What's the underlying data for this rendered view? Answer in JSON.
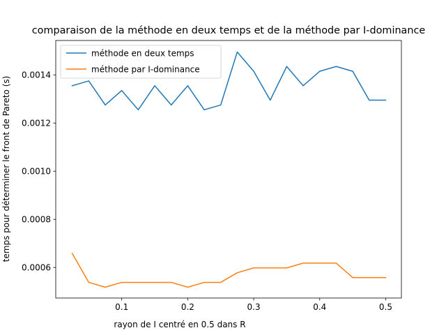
{
  "chart_data": {
    "type": "line",
    "title": "comparaison de la méthode en deux temps et de la méthode par I-dominance",
    "xlabel": "rayon de I centré en 0.5 dans R",
    "ylabel": "temps pour déterminer le front de Pareto (s)",
    "xlim": [
      0.0,
      0.5238
    ],
    "ylim": [
      0.000473,
      0.001543
    ],
    "x_ticks": [
      0.1,
      0.2,
      0.3,
      0.4,
      0.5
    ],
    "x_tick_labels": [
      "0.1",
      "0.2",
      "0.3",
      "0.4",
      "0.5"
    ],
    "y_ticks": [
      0.0006,
      0.0008,
      0.001,
      0.0012,
      0.0014
    ],
    "y_tick_labels": [
      "0.0006",
      "0.0008",
      "0.0010",
      "0.0012",
      "0.0014"
    ],
    "legend_position": "top-left",
    "grid": false,
    "x": [
      0.025,
      0.05,
      0.075,
      0.1,
      0.125,
      0.15,
      0.175,
      0.2,
      0.225,
      0.25,
      0.275,
      0.3,
      0.325,
      0.35,
      0.375,
      0.4,
      0.425,
      0.45,
      0.475,
      0.5
    ],
    "series": [
      {
        "name": "méthode en deux temps",
        "color": "#1f77b4",
        "values": [
          0.001355,
          0.001375,
          0.001275,
          0.001335,
          0.001255,
          0.001355,
          0.001275,
          0.001355,
          0.001255,
          0.001275,
          0.001495,
          0.001415,
          0.001295,
          0.001435,
          0.001355,
          0.001415,
          0.001435,
          0.001415,
          0.001295,
          0.001295
        ]
      },
      {
        "name": "méthode par I-dominance",
        "color": "#ff7f0e",
        "values": [
          0.000658,
          0.000538,
          0.000518,
          0.000538,
          0.000538,
          0.000538,
          0.000538,
          0.000518,
          0.000538,
          0.000538,
          0.000578,
          0.000598,
          0.000598,
          0.000598,
          0.000618,
          0.000618,
          0.000618,
          0.000558,
          0.000558,
          0.000558
        ]
      }
    ]
  }
}
